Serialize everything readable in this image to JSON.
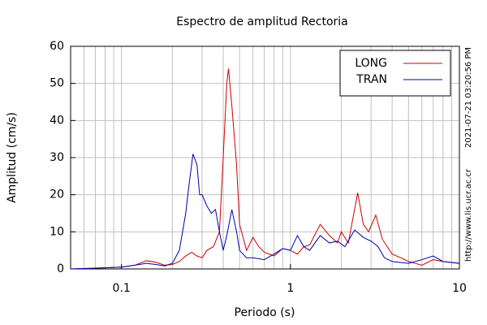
{
  "chart_data": {
    "type": "line",
    "title": "Espectro de amplitud Rectoria",
    "xlabel": "Periodo (s)",
    "ylabel": "Amplitud (cm/s)",
    "side_texts": [
      "2021-07-21 03:20:56 PM",
      "http://www.lis.ucr.ac.cr"
    ],
    "xscale": "log",
    "xlim": [
      0.05,
      10
    ],
    "xticks": [
      0.1,
      1,
      10
    ],
    "x_minor_ticks": [
      0.06,
      0.07,
      0.08,
      0.09,
      0.2,
      0.3,
      0.4,
      0.5,
      0.6,
      0.7,
      0.8,
      0.9,
      2,
      3,
      4,
      5,
      6,
      7,
      8,
      9
    ],
    "ylim": [
      0,
      60
    ],
    "yticks": [
      0,
      10,
      20,
      30,
      40,
      50,
      60
    ],
    "grid": true,
    "legend": "upper right",
    "series": [
      {
        "name": "LONG",
        "color": "#cc0000",
        "x": [
          0.05,
          0.07,
          0.09,
          0.1,
          0.12,
          0.14,
          0.16,
          0.18,
          0.2,
          0.22,
          0.24,
          0.26,
          0.28,
          0.3,
          0.32,
          0.35,
          0.38,
          0.4,
          0.42,
          0.43,
          0.45,
          0.48,
          0.5,
          0.55,
          0.6,
          0.65,
          0.7,
          0.8,
          0.9,
          1.0,
          1.1,
          1.2,
          1.3,
          1.5,
          1.7,
          1.9,
          2.0,
          2.2,
          2.5,
          2.7,
          2.9,
          3.2,
          3.5,
          4,
          4.5,
          5,
          6,
          7,
          8,
          10
        ],
        "values": [
          0,
          0.2,
          0.4,
          0.5,
          1,
          2.2,
          1.8,
          1,
          1.2,
          2,
          3.5,
          4.5,
          3.5,
          3,
          5,
          6,
          10,
          30,
          50,
          54,
          44,
          28,
          12,
          5,
          8.5,
          6,
          4.5,
          3.5,
          5.5,
          5,
          4,
          6,
          6.5,
          12,
          9,
          7,
          10,
          7,
          20.5,
          12,
          10,
          14.5,
          8,
          4,
          3,
          2,
          1,
          2.5,
          2,
          1.5
        ]
      },
      {
        "name": "TRAN",
        "color": "#0000aa",
        "x": [
          0.05,
          0.08,
          0.1,
          0.12,
          0.14,
          0.16,
          0.18,
          0.2,
          0.22,
          0.24,
          0.25,
          0.265,
          0.28,
          0.29,
          0.3,
          0.32,
          0.34,
          0.36,
          0.38,
          0.4,
          0.42,
          0.45,
          0.48,
          0.5,
          0.55,
          0.6,
          0.7,
          0.8,
          0.9,
          1.0,
          1.1,
          1.2,
          1.3,
          1.5,
          1.7,
          1.9,
          2.1,
          2.4,
          2.7,
          3.0,
          3.3,
          3.6,
          4,
          5,
          6,
          7,
          8,
          10
        ],
        "values": [
          0,
          0.3,
          0.5,
          1,
          1.5,
          1.2,
          0.8,
          1.5,
          5,
          15,
          22,
          31,
          28,
          20,
          20,
          17,
          15,
          16,
          10,
          5,
          9,
          16,
          10,
          5,
          3,
          3,
          2.5,
          4,
          5.5,
          5,
          9,
          6,
          5,
          9,
          7,
          7.5,
          6,
          10.5,
          8.5,
          7.5,
          6,
          3,
          2,
          1.5,
          2.5,
          3.5,
          2,
          1.5
        ]
      }
    ]
  }
}
